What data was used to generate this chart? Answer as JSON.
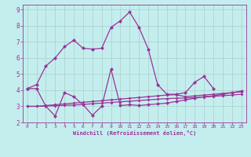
{
  "background_color": "#c4eeee",
  "grid_color": "#aacccc",
  "line_color": "#993399",
  "xlabel": "Windchill (Refroidissement éolien,°C)",
  "xlim": [
    -0.5,
    23.5
  ],
  "ylim": [
    2,
    9.3
  ],
  "xticks": [
    0,
    1,
    2,
    3,
    4,
    5,
    6,
    7,
    8,
    9,
    10,
    11,
    12,
    13,
    14,
    15,
    16,
    17,
    18,
    19,
    20,
    21,
    22,
    23
  ],
  "yticks": [
    2,
    3,
    4,
    5,
    6,
    7,
    8,
    9
  ],
  "curve_high": [
    4.1,
    4.35,
    5.5,
    6.0,
    6.7,
    7.1,
    6.6,
    6.55,
    6.6,
    7.9,
    8.3,
    8.85,
    7.9,
    6.55,
    4.35,
    3.75,
    3.75,
    3.85,
    4.5,
    4.85,
    4.1,
    null,
    null,
    null
  ],
  "curve_wiggly": [
    4.1,
    4.1,
    3.0,
    2.4,
    3.85,
    3.6,
    3.1,
    2.45,
    3.0,
    5.3,
    3.05,
    3.1,
    3.05,
    3.1,
    3.15,
    3.2,
    3.3,
    3.4,
    3.5,
    3.6,
    3.65,
    3.75,
    3.85,
    3.95
  ],
  "curve_straight1": [
    3.0,
    3.0,
    3.05,
    3.1,
    3.15,
    3.2,
    3.25,
    3.3,
    3.35,
    3.4,
    3.45,
    3.5,
    3.55,
    3.6,
    3.65,
    3.7,
    3.72,
    3.6,
    3.65,
    3.7,
    3.75,
    3.8,
    3.85,
    3.9
  ],
  "curve_straight2": [
    3.0,
    3.0,
    3.02,
    3.04,
    3.06,
    3.08,
    3.12,
    3.16,
    3.2,
    3.24,
    3.28,
    3.32,
    3.36,
    3.4,
    3.44,
    3.48,
    3.5,
    3.52,
    3.54,
    3.58,
    3.62,
    3.66,
    3.7,
    3.75
  ]
}
